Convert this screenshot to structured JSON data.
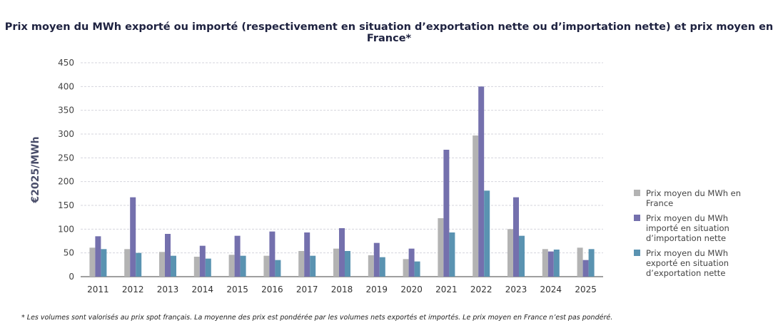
{
  "chart_data": {
    "type": "bar",
    "title": "Prix moyen du MWh exporté ou importé (respectivement en situation d’exportation nette ou d’importation nette) et prix moyen en France*",
    "ylabel": "€2025/MWh",
    "xlabel": "",
    "ylim": [
      0,
      450
    ],
    "yticks": [
      0,
      50,
      100,
      150,
      200,
      250,
      300,
      350,
      400,
      450
    ],
    "grid": true,
    "legend_position": "right",
    "categories": [
      "2011",
      "2012",
      "2013",
      "2014",
      "2015",
      "2016",
      "2017",
      "2018",
      "2019",
      "2020",
      "2021",
      "2022",
      "2023",
      "2024",
      "2025"
    ],
    "series": [
      {
        "name": "Prix moyen du MWh en France",
        "color": "#b3b3b3",
        "values": [
          61,
          58,
          52,
          42,
          46,
          44,
          54,
          59,
          45,
          37,
          123,
          297,
          100,
          58,
          61
        ]
      },
      {
        "name": "Prix moyen du MWh importé en situation d’importation nette",
        "color": "#7470ad",
        "values": [
          85,
          167,
          90,
          65,
          86,
          95,
          93,
          102,
          71,
          59,
          267,
          400,
          167,
          53,
          35
        ]
      },
      {
        "name": "Prix moyen du MWh exporté en situation d’exportation nette",
        "color": "#5a93b1",
        "values": [
          58,
          50,
          44,
          38,
          44,
          35,
          44,
          54,
          41,
          32,
          93,
          181,
          86,
          57,
          58
        ]
      }
    ]
  },
  "footnote": "* Les volumes sont valorisés au prix spot français. La moyenne des prix est pondérée par les volumes nets exportés et importés. Le prix moyen en France n’est pas pondéré."
}
